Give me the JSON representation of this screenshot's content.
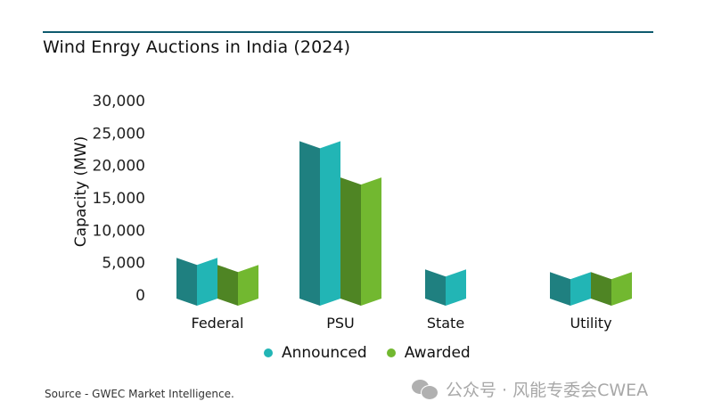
{
  "header": {
    "title": "Wind Enrgy Auctions in India (2024)"
  },
  "chart_data": {
    "type": "bar",
    "title": "Wind Enrgy Auctions in India (2024)",
    "xlabel": "",
    "ylabel": "Capacity (MW)",
    "ylim": [
      0,
      30000
    ],
    "yticks": [
      0,
      5000,
      10000,
      15000,
      20000,
      25000,
      30000
    ],
    "ytick_labels": [
      "0",
      "5,000",
      "10,000",
      "15,000",
      "20,000",
      "25,000",
      "30,000"
    ],
    "categories": [
      "Federal",
      "PSU",
      "State",
      "Utility"
    ],
    "series": [
      {
        "name": "Announced",
        "values": [
          6300,
          24300,
          4500,
          4100
        ],
        "color_dark": "#1f8080",
        "color_light": "#22b5b5"
      },
      {
        "name": "Awarded",
        "values": [
          5200,
          18700,
          0,
          4100
        ],
        "color_dark": "#4f8524",
        "color_light": "#72b830"
      }
    ],
    "legend": {
      "position": "bottom",
      "entries": [
        "Announced",
        "Awarded"
      ]
    },
    "grid": false
  },
  "footer": {
    "source": "Source - GWEC Market Intelligence.",
    "watermark": "公众号 · 风能专委会CWEA"
  }
}
